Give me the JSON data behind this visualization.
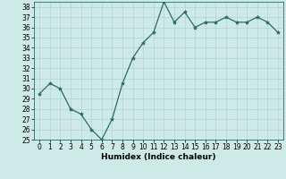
{
  "x": [
    0,
    1,
    2,
    3,
    4,
    5,
    6,
    7,
    8,
    9,
    10,
    11,
    12,
    13,
    14,
    15,
    16,
    17,
    18,
    19,
    20,
    21,
    22,
    23
  ],
  "y": [
    29.5,
    30.5,
    30.0,
    28.0,
    27.5,
    26.0,
    25.0,
    27.0,
    30.5,
    33.0,
    34.5,
    35.5,
    38.5,
    36.5,
    37.5,
    36.0,
    36.5,
    36.5,
    37.0,
    36.5,
    36.5,
    37.0,
    36.5,
    35.5
  ],
  "line_color": "#2e6b5e",
  "marker": "*",
  "marker_size": 3,
  "bg_color": "#ceeae6",
  "grid_color": "#b0d4cf",
  "xlabel": "Humidex (Indice chaleur)",
  "ylim": [
    25,
    38.5
  ],
  "xlim": [
    -0.5,
    23.5
  ],
  "yticks": [
    25,
    26,
    27,
    28,
    29,
    30,
    31,
    32,
    33,
    34,
    35,
    36,
    37,
    38
  ],
  "xticks": [
    0,
    1,
    2,
    3,
    4,
    5,
    6,
    7,
    8,
    9,
    10,
    11,
    12,
    13,
    14,
    15,
    16,
    17,
    18,
    19,
    20,
    21,
    22,
    23
  ],
  "tick_fontsize": 5.5,
  "label_fontsize": 6.5
}
